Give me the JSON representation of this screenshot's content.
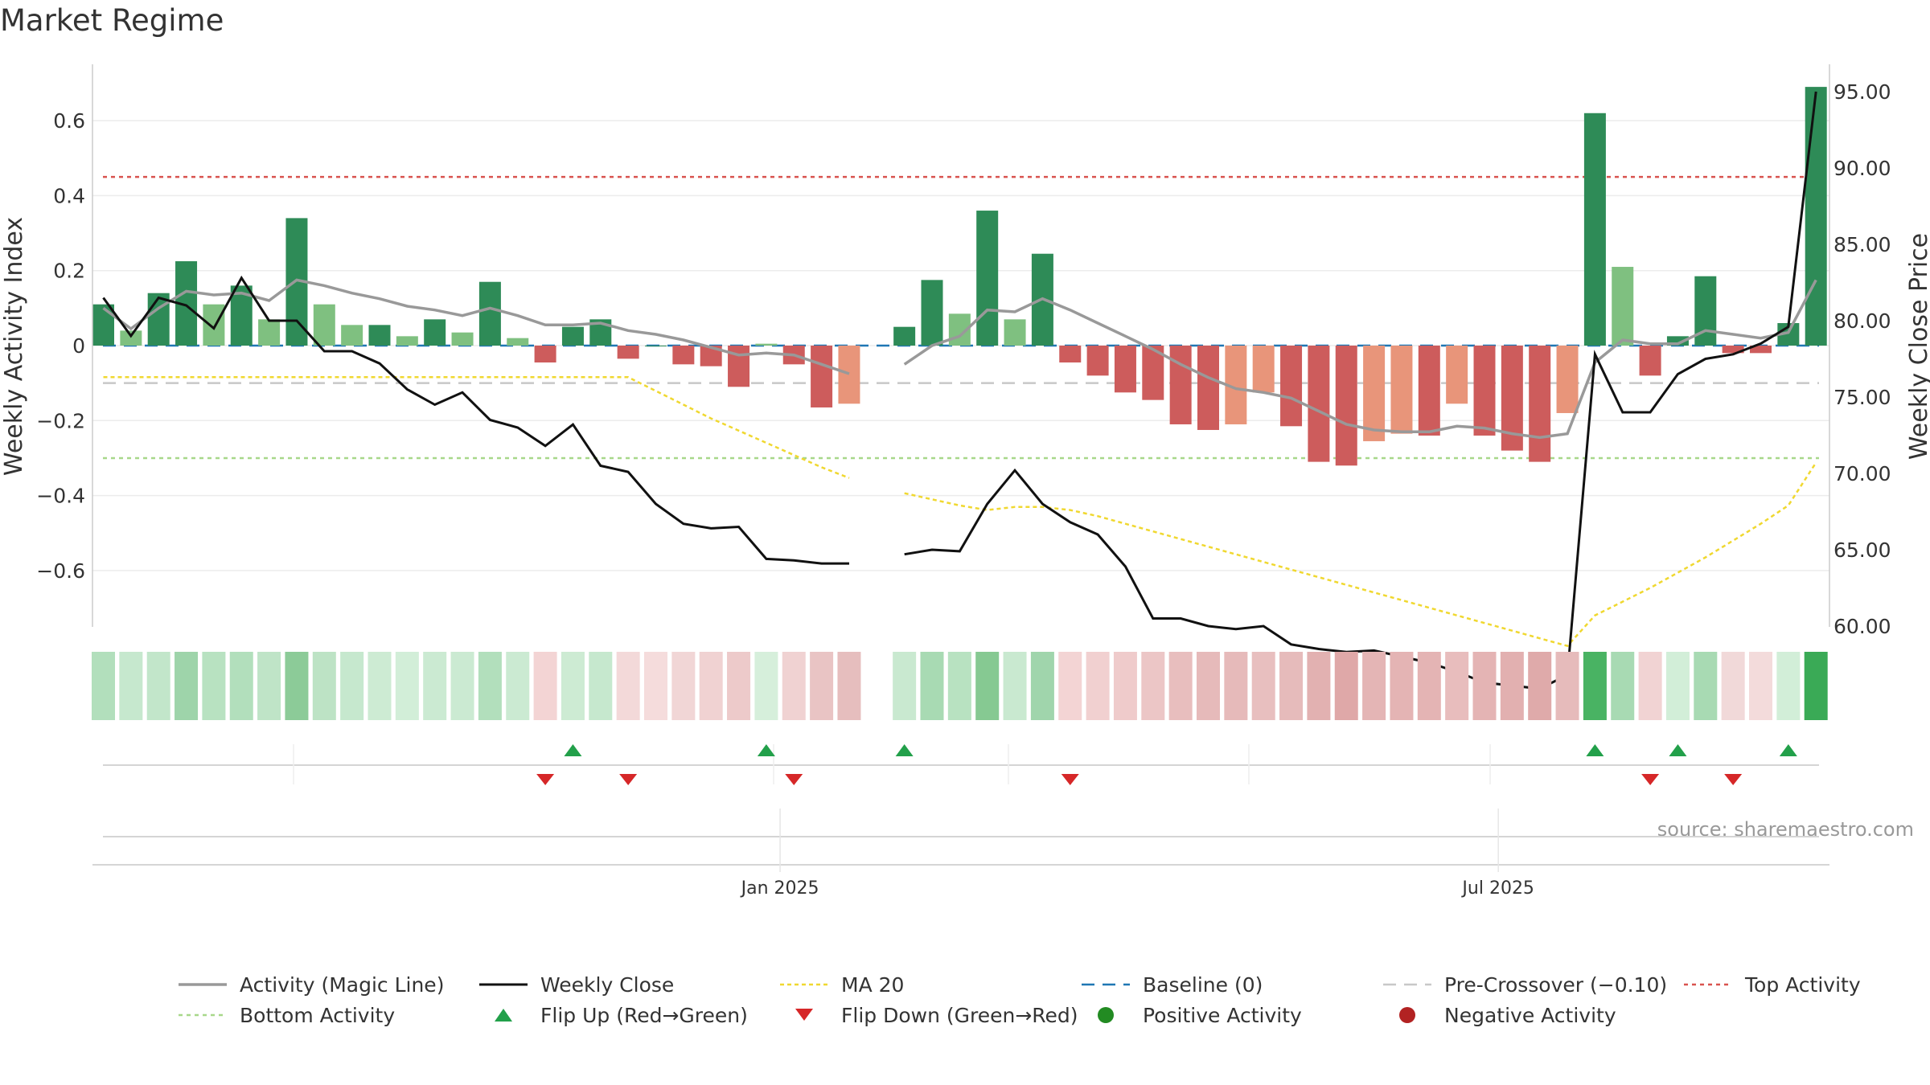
{
  "title": "Market Regime",
  "source": "source: sharemaestro.com",
  "colors": {
    "dark_green": "#2e8b57",
    "light_green": "#7fc080",
    "dark_red": "#cd5c5c",
    "light_red": "#e8957a",
    "magic_line": "#999999",
    "close_line": "#111111",
    "ma": "#f0d830",
    "baseline": "#1f77b4",
    "pre_crossover": "#c8c8c8",
    "top_activity": "#d9534f",
    "bottom_activity": "#a8d88a",
    "flip_up": "#22a04a",
    "flip_down": "#d62728",
    "positive": "#228b22",
    "negative": "#b22222"
  },
  "chart_data": {
    "type": "bar",
    "title": "Market Regime",
    "ylabel": "Weekly Activity Index",
    "y2label": "Weekly Close Price",
    "ylim": [
      -0.75,
      0.75
    ],
    "y2lim": [
      60,
      96.5
    ],
    "yticks": [
      0.6,
      0.4,
      0.2,
      0,
      -0.2,
      -0.4,
      -0.6
    ],
    "ytick_labels": [
      "0.6",
      "0.4",
      "0.2",
      "0",
      "−0.2",
      "−0.4",
      "−0.6"
    ],
    "y2ticks": [
      95,
      90,
      85,
      80,
      75,
      70,
      65,
      60
    ],
    "y2tick_labels": [
      "95.00",
      "90.00",
      "85.00",
      "80.00",
      "75.00",
      "70.00",
      "65.00",
      "60.00"
    ],
    "xticks": [
      {
        "label": "Jan 2025",
        "pos": 24.5
      },
      {
        "label": "Jul 2025",
        "pos": 50.5
      }
    ],
    "grid": true,
    "legend_position": "bottom",
    "top_activity": 0.45,
    "bottom_activity": -0.3,
    "pre_crossover": -0.1,
    "baseline": 0,
    "activity": [
      0.11,
      0.04,
      0.14,
      0.225,
      0.11,
      0.16,
      0.07,
      0.34,
      0.11,
      0.055,
      0.055,
      0.025,
      0.07,
      0.035,
      0.17,
      0.02,
      -0.045,
      0.05,
      0.07,
      -0.035,
      0,
      -0.05,
      -0.055,
      -0.11,
      0.005,
      -0.05,
      -0.165,
      -0.155,
      null,
      0.05,
      0.175,
      0.085,
      0.36,
      0.07,
      0.245,
      -0.045,
      -0.08,
      -0.125,
      -0.145,
      -0.21,
      -0.225,
      -0.21,
      -0.125,
      -0.215,
      -0.31,
      -0.32,
      -0.255,
      -0.235,
      -0.24,
      -0.155,
      -0.24,
      -0.28,
      -0.31,
      -0.18,
      0.62,
      0.21,
      -0.08,
      0.025,
      0.185,
      -0.02,
      -0.02,
      0.06,
      0.69
    ],
    "bar_class": [
      "dg",
      "lg",
      "dg",
      "dg",
      "lg",
      "dg",
      "lg",
      "dg",
      "lg",
      "lg",
      "dg",
      "lg",
      "dg",
      "lg",
      "dg",
      "lg",
      "dr",
      "dg",
      "dg",
      "dr",
      "dg",
      "dr",
      "dr",
      "dr",
      "lg",
      "dr",
      "dr",
      "lr",
      null,
      "dg",
      "dg",
      "lg",
      "dg",
      "lg",
      "dg",
      "dr",
      "dr",
      "dr",
      "dr",
      "dr",
      "dr",
      "lr",
      "lr",
      "dr",
      "dr",
      "dr",
      "lr",
      "lr",
      "dr",
      "lr",
      "dr",
      "dr",
      "dr",
      "lr",
      "dg",
      "lg",
      "dr",
      "dg",
      "dg",
      "dr",
      "dr",
      "dg",
      "dg"
    ],
    "magic_line": [
      0.1,
      0.045,
      0.1,
      0.145,
      0.135,
      0.14,
      0.12,
      0.175,
      0.16,
      0.14,
      0.125,
      0.105,
      0.095,
      0.08,
      0.1,
      0.08,
      0.055,
      0.055,
      0.06,
      0.04,
      0.03,
      0.015,
      -0.005,
      -0.025,
      -0.02,
      -0.025,
      -0.05,
      -0.075,
      null,
      -0.05,
      0,
      0.025,
      0.095,
      0.09,
      0.125,
      0.095,
      0.06,
      0.025,
      -0.01,
      -0.05,
      -0.085,
      -0.115,
      -0.125,
      -0.14,
      -0.175,
      -0.21,
      -0.225,
      -0.23,
      -0.23,
      -0.215,
      -0.22,
      -0.235,
      -0.245,
      -0.235,
      -0.045,
      0.015,
      0.005,
      0.005,
      0.04,
      0.03,
      0.02,
      0.035,
      0.175
    ],
    "weekly_close": [
      81.5,
      79,
      81.5,
      81,
      79.5,
      82.8,
      80,
      80,
      78,
      78,
      77.2,
      75.5,
      74.5,
      75.3,
      73.5,
      73,
      71.8,
      73.2,
      70.5,
      70.1,
      68,
      66.7,
      66.4,
      66.5,
      64.4,
      64.3,
      64.1,
      64.1,
      null,
      64.7,
      65,
      64.9,
      68,
      70.2,
      68,
      66.8,
      66,
      63.9,
      60.5,
      60.5,
      60,
      59.8,
      60,
      58.8,
      58.5,
      58.3,
      58.4,
      58,
      57.6,
      57,
      56.3,
      56.1,
      55.9,
      56.8,
      77.8,
      74,
      74,
      76.5,
      77.5,
      77.8,
      78.5,
      79.6,
      95
    ],
    "ma20": [
      76.3,
      76.3,
      76.3,
      76.3,
      76.3,
      76.3,
      76.3,
      76.3,
      76.3,
      76.3,
      76.3,
      76.3,
      76.3,
      76.3,
      76.3,
      76.3,
      76.3,
      76.3,
      76.3,
      76.3,
      75.4,
      74.5,
      73.6,
      72.8,
      72,
      71.2,
      70.4,
      69.7,
      null,
      68.7,
      68.3,
      67.9,
      67.6,
      67.8,
      67.8,
      67.6,
      67.2,
      66.7,
      66.2,
      65.7,
      65.2,
      64.7,
      64.2,
      63.7,
      63.2,
      62.7,
      62.2,
      61.7,
      61.2,
      60.7,
      60.2,
      59.7,
      59.2,
      58.7,
      60.7,
      61.6,
      62.5,
      63.5,
      64.5,
      65.6,
      66.7,
      67.9,
      70.7
    ],
    "regime_strip": [
      [
        "#b2dfbc",
        0.92
      ],
      [
        "#c6e8ce",
        0.94
      ],
      [
        "#c2e6ca",
        0.9
      ],
      [
        "#9ed4aa",
        0.9
      ],
      [
        "#b8e2c1",
        0.9
      ],
      [
        "#b2dfbc",
        0.9
      ],
      [
        "#bfe4c7",
        0.9
      ],
      [
        "#8ccb98",
        0.92
      ],
      [
        "#bde3c5",
        0.9
      ],
      [
        "#c6e8ce",
        0.9
      ],
      [
        "#cdebd3",
        0.92
      ],
      [
        "#d2eed8",
        0.92
      ],
      [
        "#cbead2",
        0.92
      ],
      [
        "#cbead2",
        0.92
      ],
      [
        "#b2dfbc",
        0.92
      ],
      [
        "#cbead2",
        0.92
      ],
      [
        "#f3d4d4",
        0.92
      ],
      [
        "#cdebd3",
        0.92
      ],
      [
        "#c6e8ce",
        0.92
      ],
      [
        "#f3d9d9",
        0.92
      ],
      [
        "#f5dcdc",
        0.92
      ],
      [
        "#f1d6d6",
        0.92
      ],
      [
        "#f0d2d2",
        0.92
      ],
      [
        "#edcaca",
        0.92
      ],
      [
        "#d6efdb",
        0.92
      ],
      [
        "#f0d2d2",
        0.92
      ],
      [
        "#e9c4c4",
        0.92
      ],
      [
        "#e6bebe",
        0.92
      ],
      null,
      [
        "#c9e9d0",
        0.92
      ],
      [
        "#a8dab3",
        0.92
      ],
      [
        "#b8e2c1",
        0.92
      ],
      [
        "#86c992",
        0.92
      ],
      [
        "#c9e9d0",
        0.92
      ],
      [
        "#a0d5ac",
        0.92
      ],
      [
        "#f3d4d4",
        0.92
      ],
      [
        "#f1d0d0",
        0.92
      ],
      [
        "#efcbcb",
        0.92
      ],
      [
        "#ecc6c6",
        0.92
      ],
      [
        "#e8bebe",
        0.92
      ],
      [
        "#e6baba",
        0.92
      ],
      [
        "#e6baba",
        0.92
      ],
      [
        "#e8bfbf",
        0.92
      ],
      [
        "#e6bbbb",
        0.92
      ],
      [
        "#e2b1b1",
        0.92
      ],
      [
        "#dfa8a8",
        0.92
      ],
      [
        "#e4b5b5",
        0.92
      ],
      [
        "#e4b4b4",
        0.92
      ],
      [
        "#e4b4b4",
        0.92
      ],
      [
        "#e8bdbd",
        0.92
      ],
      [
        "#e4b4b4",
        0.92
      ],
      [
        "#e2b0b0",
        0.92
      ],
      [
        "#dfaaaa",
        0.92
      ],
      [
        "#e6bbbb",
        0.92
      ],
      [
        "#49b363",
        0.92
      ],
      [
        "#a8dab3",
        0.92
      ],
      [
        "#f1d3d3",
        0.92
      ],
      [
        "#d2eed8",
        0.92
      ],
      [
        "#a8dab3",
        0.92
      ],
      [
        "#f1d9d9",
        0.92
      ],
      [
        "#f3dbdb",
        0.92
      ],
      [
        "#d2eed8",
        0.92
      ],
      [
        "#3aaa56",
        0.92
      ]
    ],
    "flip_up": [
      17,
      24,
      29,
      54,
      57,
      61
    ],
    "flip_down": [
      16,
      19,
      25,
      35,
      56,
      59
    ]
  },
  "legend": [
    {
      "label": "Activity (Magic Line)",
      "key": "line-gray"
    },
    {
      "label": "Weekly Close",
      "key": "line-black"
    },
    {
      "label": "MA 20",
      "key": "line-ma"
    },
    {
      "label": "Baseline (0)",
      "key": "line-baseline"
    },
    {
      "label": "Pre-Crossover (−0.10)",
      "key": "line-pre"
    },
    {
      "label": "Top Activity",
      "key": "line-top"
    },
    {
      "label": "Bottom Activity",
      "key": "line-bottom"
    },
    {
      "label": "Flip Up (Red→Green)",
      "key": "tri-up"
    },
    {
      "label": "Flip Down (Green→Red)",
      "key": "tri-down"
    },
    {
      "label": "Positive Activity",
      "key": "dot-pos"
    },
    {
      "label": "Negative Activity",
      "key": "dot-neg"
    }
  ]
}
